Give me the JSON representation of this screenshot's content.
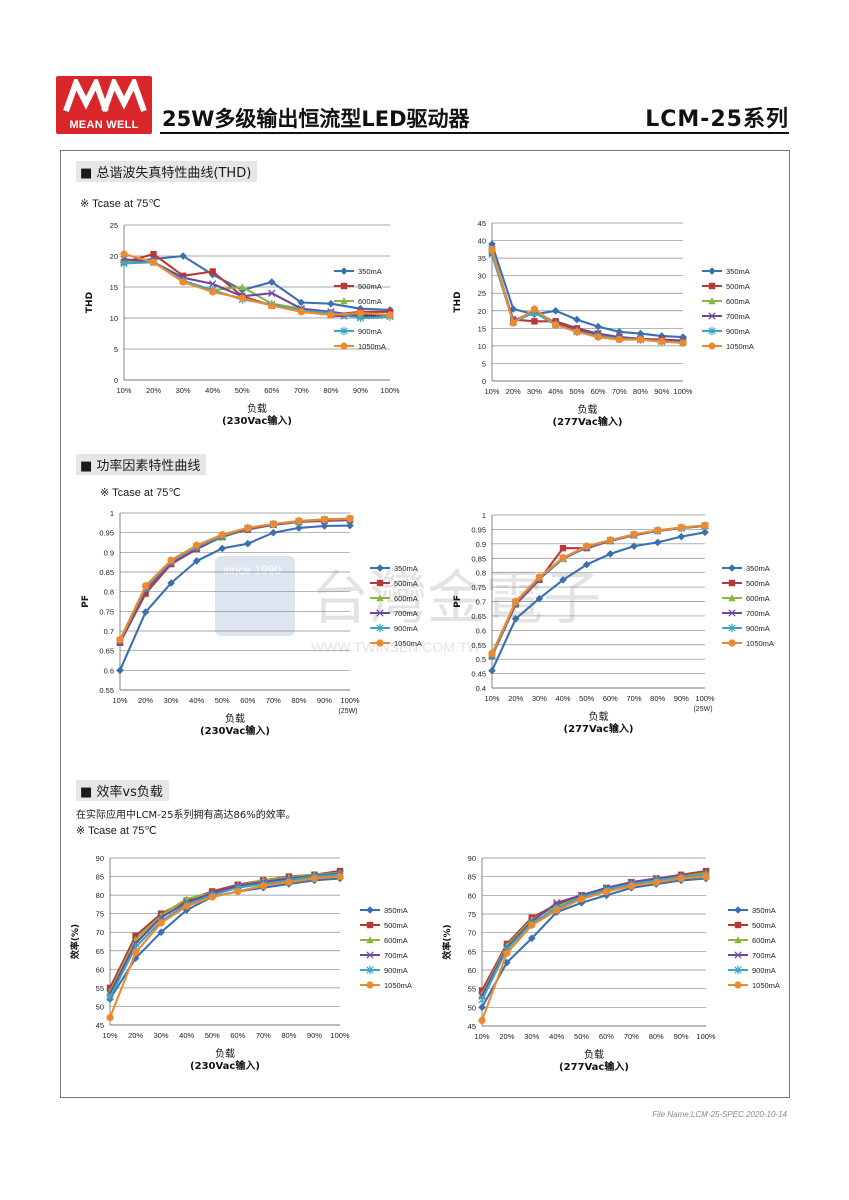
{
  "header": {
    "logo_text": "MEAN WELL",
    "title": "25W多级输出恒流型LED驱动器",
    "series": "LCM-25系列"
  },
  "sections": {
    "thd": "总谐波失真特性曲线(THD)",
    "pf": "功率因素特性曲线",
    "eff": "效率vs负载"
  },
  "notes": {
    "tcase_thd": "※ Tcase at 75℃",
    "tcase_pf": "※ Tcase at 75℃",
    "tcase_eff": "※ Tcase at 75℃",
    "eff_desc": "在实际应用中LCM-25系列拥有高达86%的效率。"
  },
  "footer": {
    "file_name": "File Name:LCM-25-SPEC   2020-10-14"
  },
  "watermark": {
    "text": "台灣金電子",
    "url": "WWW.TWINSEN.COM.TW",
    "since": "since 1990"
  },
  "colors": {
    "350mA": "#3a6fb0",
    "500mA": "#b8383a",
    "600mA": "#8db43e",
    "700mA": "#6f4a9a",
    "900mA": "#3aa6c2",
    "1050mA": "#ee8a2d"
  },
  "chart_data": [
    {
      "id": "thd230",
      "type": "line",
      "categories": [
        "10%",
        "20%",
        "30%",
        "40%",
        "50%",
        "60%",
        "70%",
        "80%",
        "90%",
        "100%"
      ],
      "ylabel": "THD",
      "xlabel": "负载",
      "xsub": "(230Vac输入)",
      "ylim": [
        0,
        25
      ],
      "ystep": 5,
      "series": [
        {
          "name": "350mA",
          "values": [
            19.0,
            19.5,
            20.0,
            17.0,
            14.5,
            15.8,
            12.5,
            12.3,
            11.5,
            11.3
          ]
        },
        {
          "name": "500mA",
          "values": [
            19.0,
            20.3,
            16.8,
            17.5,
            13.5,
            12.0,
            11.3,
            10.5,
            11.0,
            11.0
          ]
        },
        {
          "name": "600mA",
          "values": [
            19.2,
            19.0,
            16.0,
            14.5,
            15.0,
            12.3,
            11.5,
            10.8,
            10.5,
            10.5
          ]
        },
        {
          "name": "700mA",
          "values": [
            19.5,
            19.0,
            16.5,
            15.5,
            13.5,
            14.0,
            11.5,
            11.0,
            10.3,
            10.5
          ]
        },
        {
          "name": "900mA",
          "values": [
            18.8,
            19.0,
            16.0,
            14.5,
            13.0,
            12.2,
            11.2,
            10.8,
            10.0,
            10.2
          ]
        },
        {
          "name": "1050mA",
          "values": [
            20.3,
            19.0,
            15.8,
            14.2,
            13.2,
            12.0,
            11.0,
            10.5,
            10.8,
            10.5
          ]
        }
      ]
    },
    {
      "id": "thd277",
      "type": "line",
      "categories": [
        "10%",
        "20%",
        "30%",
        "40%",
        "50%",
        "60%",
        "70%",
        "80%",
        "90%",
        "100%"
      ],
      "ylabel": "THD",
      "xlabel": "负载",
      "xsub": "(277Vac输入)",
      "ylim": [
        0,
        45
      ],
      "ystep": 5,
      "series": [
        {
          "name": "350mA",
          "values": [
            39.0,
            20.5,
            19.0,
            20.0,
            17.5,
            15.5,
            14.0,
            13.5,
            12.8,
            12.5
          ]
        },
        {
          "name": "500mA",
          "values": [
            36.5,
            17.5,
            17.0,
            17.0,
            15.0,
            13.5,
            12.5,
            12.0,
            11.8,
            11.5
          ]
        },
        {
          "name": "600mA",
          "values": [
            37.0,
            17.0,
            19.5,
            16.5,
            14.5,
            13.0,
            12.0,
            11.8,
            11.5,
            11.3
          ]
        },
        {
          "name": "700mA",
          "values": [
            37.5,
            17.0,
            20.0,
            16.5,
            14.5,
            13.5,
            12.5,
            12.0,
            11.5,
            11.5
          ]
        },
        {
          "name": "900mA",
          "values": [
            36.0,
            16.8,
            19.5,
            16.0,
            14.0,
            12.8,
            12.0,
            11.8,
            11.2,
            11.0
          ]
        },
        {
          "name": "1050mA",
          "values": [
            37.5,
            16.5,
            20.5,
            16.0,
            14.0,
            12.5,
            11.8,
            11.8,
            11.3,
            10.8
          ]
        }
      ]
    },
    {
      "id": "pf230",
      "type": "line",
      "categories": [
        "10%",
        "20%",
        "30%",
        "40%",
        "50%",
        "60%",
        "70%",
        "80%",
        "90%",
        "100%"
      ],
      "xsub_last": "(25W)",
      "ylabel": "PF",
      "xlabel": "负载",
      "xsub": "(230Vac输入)",
      "ylim": [
        0.55,
        1.0
      ],
      "ystep": 0.05,
      "series": [
        {
          "name": "350mA",
          "values": [
            0.6,
            0.748,
            0.822,
            0.878,
            0.91,
            0.922,
            0.95,
            0.962,
            0.967,
            0.968
          ]
        },
        {
          "name": "500mA",
          "values": [
            0.67,
            0.795,
            0.87,
            0.908,
            0.94,
            0.958,
            0.97,
            0.977,
            0.98,
            0.982
          ]
        },
        {
          "name": "600mA",
          "values": [
            0.675,
            0.808,
            0.875,
            0.912,
            0.938,
            0.96,
            0.97,
            0.978,
            0.982,
            0.985
          ]
        },
        {
          "name": "700mA",
          "values": [
            0.672,
            0.805,
            0.872,
            0.91,
            0.94,
            0.96,
            0.97,
            0.978,
            0.982,
            0.984
          ]
        },
        {
          "name": "900mA",
          "values": [
            0.676,
            0.81,
            0.877,
            0.914,
            0.942,
            0.962,
            0.972,
            0.979,
            0.983,
            0.985
          ]
        },
        {
          "name": "1050mA",
          "values": [
            0.678,
            0.815,
            0.88,
            0.918,
            0.945,
            0.962,
            0.972,
            0.98,
            0.984,
            0.986
          ]
        }
      ]
    },
    {
      "id": "pf277",
      "type": "line",
      "categories": [
        "10%",
        "20%",
        "30%",
        "40%",
        "50%",
        "60%",
        "70%",
        "80%",
        "90%",
        "100%"
      ],
      "xsub_last": "(25W)",
      "ylabel": "PF",
      "xlabel": "负载",
      "xsub": "(277Vac输入)",
      "ylim": [
        0.4,
        1.0
      ],
      "ystep": 0.05,
      "series": [
        {
          "name": "350mA",
          "values": [
            0.46,
            0.64,
            0.71,
            0.775,
            0.828,
            0.865,
            0.892,
            0.905,
            0.925,
            0.94
          ]
        },
        {
          "name": "500mA",
          "values": [
            0.51,
            0.69,
            0.775,
            0.885,
            0.885,
            0.91,
            0.93,
            0.945,
            0.955,
            0.962
          ]
        },
        {
          "name": "600mA",
          "values": [
            0.515,
            0.695,
            0.78,
            0.85,
            0.89,
            0.91,
            0.93,
            0.945,
            0.955,
            0.962
          ]
        },
        {
          "name": "700mA",
          "values": [
            0.51,
            0.695,
            0.778,
            0.848,
            0.888,
            0.91,
            0.93,
            0.945,
            0.955,
            0.962
          ]
        },
        {
          "name": "900mA",
          "values": [
            0.512,
            0.698,
            0.782,
            0.85,
            0.89,
            0.912,
            0.932,
            0.946,
            0.956,
            0.963
          ]
        },
        {
          "name": "1050mA",
          "values": [
            0.52,
            0.7,
            0.785,
            0.852,
            0.892,
            0.913,
            0.933,
            0.947,
            0.957,
            0.964
          ]
        }
      ]
    },
    {
      "id": "eff230",
      "type": "line",
      "categories": [
        "10%",
        "20%",
        "30%",
        "40%",
        "50%",
        "60%",
        "70%",
        "80%",
        "90%",
        "100%"
      ],
      "ylabel": "效率(%)",
      "xlabel": "负载",
      "xsub": "(230Vac输入)",
      "ylim": [
        45,
        90
      ],
      "ystep": 5,
      "series": [
        {
          "name": "350mA",
          "values": [
            52.0,
            63.0,
            70.0,
            76.0,
            79.5,
            81.0,
            82.0,
            83.0,
            84.0,
            84.5
          ]
        },
        {
          "name": "500mA",
          "values": [
            55.0,
            69.0,
            75.0,
            78.5,
            81.0,
            82.8,
            84.0,
            85.0,
            85.5,
            86.5
          ]
        },
        {
          "name": "600mA",
          "values": [
            54.0,
            68.0,
            74.5,
            79.0,
            80.5,
            82.5,
            84.0,
            84.8,
            85.5,
            86.0
          ]
        },
        {
          "name": "700mA",
          "values": [
            53.5,
            67.0,
            74.0,
            78.0,
            80.5,
            82.5,
            83.5,
            84.5,
            85.2,
            85.8
          ]
        },
        {
          "name": "900mA",
          "values": [
            52.5,
            66.0,
            73.0,
            77.5,
            80.0,
            82.0,
            83.0,
            84.0,
            85.0,
            85.5
          ]
        },
        {
          "name": "1050mA",
          "values": [
            47.0,
            64.5,
            72.5,
            77.0,
            79.5,
            81.0,
            82.5,
            83.5,
            84.5,
            85.0
          ]
        }
      ]
    },
    {
      "id": "eff277",
      "type": "line",
      "categories": [
        "10%",
        "20%",
        "30%",
        "40%",
        "50%",
        "60%",
        "70%",
        "80%",
        "90%",
        "100%"
      ],
      "ylabel": "效率(%)",
      "xlabel": "负载",
      "xsub": "(277Vac输入)",
      "ylim": [
        45,
        90
      ],
      "ystep": 5,
      "series": [
        {
          "name": "350mA",
          "values": [
            50.0,
            62.0,
            68.5,
            75.5,
            78.0,
            80.0,
            82.0,
            83.0,
            84.0,
            84.5
          ]
        },
        {
          "name": "500mA",
          "values": [
            54.5,
            67.0,
            74.0,
            77.5,
            80.0,
            82.0,
            83.5,
            84.5,
            85.5,
            86.5
          ]
        },
        {
          "name": "600mA",
          "values": [
            53.5,
            66.5,
            73.5,
            77.0,
            79.5,
            81.5,
            83.0,
            84.5,
            85.0,
            86.0
          ]
        },
        {
          "name": "700mA",
          "values": [
            53.0,
            66.0,
            73.0,
            78.0,
            80.0,
            82.0,
            83.5,
            84.5,
            85.0,
            85.5
          ]
        },
        {
          "name": "900mA",
          "values": [
            52.0,
            65.5,
            72.5,
            76.5,
            79.5,
            81.5,
            83.0,
            84.0,
            85.0,
            85.5
          ]
        },
        {
          "name": "1050mA",
          "values": [
            46.5,
            64.5,
            72.0,
            76.0,
            79.0,
            81.0,
            82.5,
            83.5,
            84.5,
            85.0
          ]
        }
      ]
    }
  ]
}
